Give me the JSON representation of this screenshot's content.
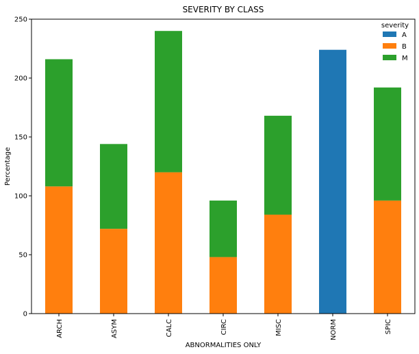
{
  "chart_data": {
    "type": "bar",
    "stacked": true,
    "title": "SEVERITY BY CLASS",
    "xlabel": "ABNORMALITIES ONLY",
    "ylabel": "Percentage",
    "ylim": [
      0,
      250
    ],
    "yticks": [
      0,
      50,
      100,
      150,
      200,
      250
    ],
    "grid": false,
    "legend_title": "severity",
    "legend_position": "top-right",
    "categories": [
      "ARCH",
      "ASYM",
      "CALC",
      "CIRC",
      "MISC",
      "NORM",
      "SPIC"
    ],
    "series": [
      {
        "name": "A",
        "color": "#1f77b4",
        "values": [
          0,
          0,
          0,
          0,
          0,
          224,
          0
        ]
      },
      {
        "name": "B",
        "color": "#ff7f0e",
        "values": [
          108,
          72,
          120,
          48,
          84,
          0,
          96
        ]
      },
      {
        "name": "M",
        "color": "#2ca02c",
        "values": [
          108,
          72,
          120,
          48,
          84,
          0,
          96
        ]
      }
    ]
  }
}
